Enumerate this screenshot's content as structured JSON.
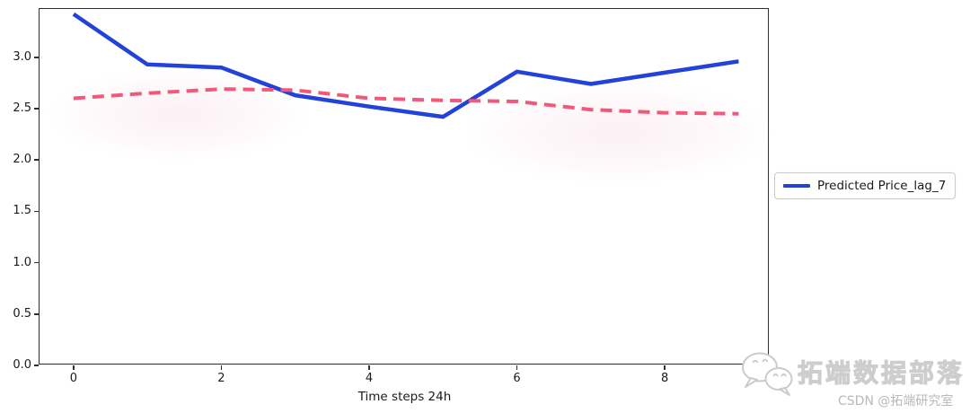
{
  "chart_data": {
    "type": "line",
    "x": [
      0,
      1,
      2,
      3,
      4,
      5,
      6,
      7,
      8,
      9
    ],
    "series": [
      {
        "name": "Predicted Price_lag_7",
        "color": "#2342d9",
        "line_style": "solid",
        "line_width": 4.5,
        "in_legend": true,
        "values": [
          3.42,
          2.93,
          2.9,
          2.63,
          2.52,
          2.42,
          2.86,
          2.74,
          2.85,
          2.96
        ]
      },
      {
        "name": "",
        "color": "#f0597b",
        "line_style": "dashed",
        "line_width": 4,
        "in_legend": false,
        "values": [
          2.6,
          2.65,
          2.69,
          2.68,
          2.6,
          2.58,
          2.57,
          2.49,
          2.46,
          2.45
        ]
      }
    ],
    "title": "",
    "xlabel": "Time steps 24h",
    "ylabel": "",
    "xticks": {
      "values": [
        0,
        2,
        4,
        6,
        8
      ],
      "labels": [
        "0",
        "2",
        "4",
        "6",
        "8"
      ]
    },
    "yticks": {
      "values": [
        0,
        0.5,
        1,
        1.5,
        2,
        2.5,
        3
      ],
      "labels": [
        "0.0",
        "0.5",
        "1.0",
        "1.5",
        "2.0",
        "2.5",
        "3.0"
      ]
    },
    "xlim": [
      -0.46,
      9.42
    ],
    "ylim": [
      0,
      3.47
    ],
    "grid": false,
    "legend": {
      "position": "right-outside",
      "entries": [
        "Predicted Price_lag_7"
      ]
    }
  },
  "watermark": {
    "brand": "拓端数据部落",
    "credit": "CSDN @拓端研究室",
    "icon": "wechat-icon"
  },
  "colors": {
    "predicted_line": "#2342d9",
    "dashed_line": "#f0597b",
    "axis": "#2f2f2f",
    "legend_border": "#c9c9c9",
    "watermark_text": "#d6d6d6",
    "credit_text": "#b9b9b9"
  }
}
